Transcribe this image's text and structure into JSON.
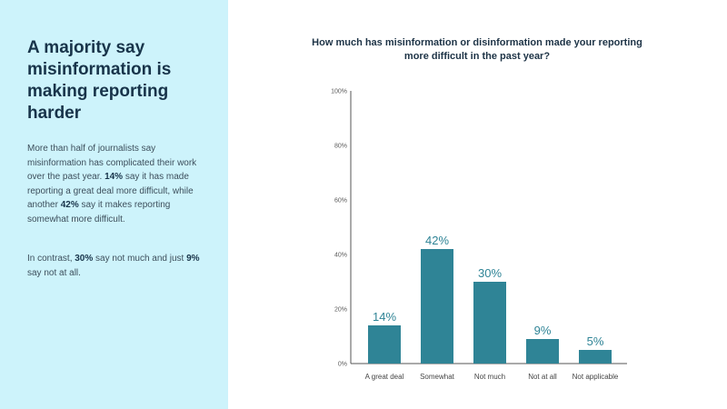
{
  "left_panel": {
    "headline": "A majority say misinformation is making reporting harder",
    "paragraph1": {
      "t1": "More than half of journalists say misinformation has complicated their work over the past year. ",
      "b1": "14%",
      "t2": " say it has made reporting a great deal more difficult, while another ",
      "b2": "42%",
      "t3": " say it makes reporting somewhat more difficult."
    },
    "paragraph2": {
      "t1": "In contrast, ",
      "b1": "30%",
      "t2": " say not much and just ",
      "b2": "9%",
      "t3": " say not at all."
    }
  },
  "colors": {
    "bar": "#2f8496",
    "panel": "#cdf3fb"
  },
  "chart_data": {
    "type": "bar",
    "title": "How much has misinformation or disinformation made your reporting more difficult in the past year?",
    "categories": [
      "A great deal",
      "Somewhat",
      "Not much",
      "Not at all",
      "Not applicable"
    ],
    "values": [
      14,
      42,
      30,
      9,
      5
    ],
    "value_labels": [
      "14%",
      "42%",
      "30%",
      "9%",
      "5%"
    ],
    "yticks": [
      0,
      20,
      40,
      60,
      80,
      100
    ],
    "ytick_labels": [
      "0%",
      "20%",
      "40%",
      "60%",
      "80%",
      "100%"
    ],
    "ylim": [
      0,
      100
    ],
    "xlabel": "",
    "ylabel": "",
    "grid": false
  }
}
